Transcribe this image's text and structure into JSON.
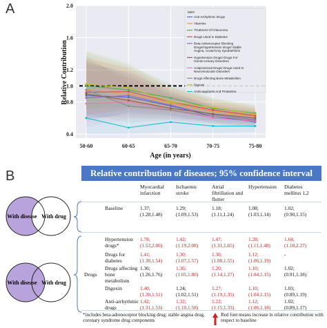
{
  "panel_a_letter": "A",
  "panel_b_letter": "B",
  "chart_data": {
    "type": "line",
    "xlabel": "Age (in years)",
    "ylabel": "Relative Contribution",
    "categories": [
      "50-60",
      "60-65",
      "65-70",
      "70-75",
      "75-80"
    ],
    "ylim": [
      0.35,
      2.0
    ],
    "yticks": [
      0.4,
      0.8,
      1.0,
      1.2,
      1.6,
      2.0
    ],
    "reference_line": 1.0,
    "legend_title": "label",
    "legend_placement": "top-right",
    "series": [
      {
        "name": "Anti-Arrhythmic Drugs",
        "color": "#4a6fc4",
        "values": [
          0.88,
          0.86,
          0.75,
          0.62,
          0.55
        ]
      },
      {
        "name": "Vitamins",
        "color": "#e59a3a",
        "values": [
          0.95,
          0.9,
          0.78,
          0.68,
          0.62
        ]
      },
      {
        "name": "Treatment Of Glaucoma",
        "color": "#4caf50",
        "values": [
          1.0,
          0.95,
          0.85,
          0.72,
          0.66
        ]
      },
      {
        "name": "Drugs Used In Diabetes",
        "color": "#d94b4b",
        "values": [
          0.92,
          0.93,
          0.8,
          0.7,
          0.63
        ]
      },
      {
        "name": "Beta-Adrenoceptor Blocking Drugs/Hypertension drugs/ Stable Angina, Acute/Cnry Syndr&Fibrin",
        "color": "#8e6ac0",
        "values": [
          0.85,
          0.88,
          0.76,
          0.64,
          0.58
        ]
      },
      {
        "name": "Hypertension Drugs/ Drugs For Genito-Urinary Disorders",
        "color": "#8c5a48",
        "values": [
          0.9,
          0.82,
          0.72,
          0.65,
          0.6
        ]
      },
      {
        "name": "Antiprotozoal Drugs/ Drugs Used In Neuromuscular Disorders",
        "color": "#e377c2",
        "values": [
          0.78,
          0.8,
          0.7,
          0.6,
          0.56
        ]
      },
      {
        "name": "Drugs Affecting Bone Metabolism",
        "color": "#8a8a8a",
        "values": [
          0.95,
          0.75,
          0.7,
          0.62,
          0.57
        ]
      },
      {
        "name": "Digoxin",
        "color": "#bcbd22",
        "values": [
          1.02,
          0.98,
          0.8,
          0.73,
          0.65
        ]
      },
      {
        "name": "Anticoagulants And Protamine",
        "color": "#17becf",
        "values": [
          0.6,
          0.48,
          0.55,
          0.5,
          0.5
        ]
      }
    ]
  },
  "table": {
    "title": "Relative contribution of diseases; 95% confidence interval",
    "columns": [
      "Myocardial infarction",
      "Ischaemic stroke",
      "Atrial fibrillation and flutter",
      "Hypertension",
      "Diabetes mellitus 1,2"
    ],
    "baseline": {
      "label": "Baseline",
      "cells": [
        "1.37; (1.28,1.48)",
        "1.29; (1.09,1.53)",
        "1.18; (1.11,1.24)",
        "1.08; (1.03,1.14)",
        "1.02; (0.90,1.15)"
      ]
    },
    "drugs_label": "Drugs",
    "rows": [
      {
        "label": "Hypertension drugs*",
        "cells": [
          {
            "text": "1.78; (1.53,2.06)",
            "red": true
          },
          {
            "text": "1.42; (1.19,2.08)",
            "red": true
          },
          {
            "text": "1.47; (1.31,1.65)",
            "red": true
          },
          {
            "text": "1.28; (1.11,1.48)",
            "red": true
          },
          {
            "text": "1.64; (1.18,2.27)",
            "red": true
          }
        ]
      },
      {
        "label": "Drugs for diabetes",
        "cells": [
          {
            "text": "1.41; (1.30,1.54)",
            "red": true
          },
          {
            "text": "1.30; (1.07,1.57)",
            "red": true
          },
          {
            "text": "1.30; (1.08,1.55)",
            "red": true
          },
          {
            "text": "1.12; (1.06,1.19)",
            "red": true
          },
          {
            "text": "-",
            "red": false
          }
        ]
      },
      {
        "label": "Drugs affecting bone metabolism",
        "cells": [
          {
            "text": "1.36; (1.26,1.76)",
            "red": false
          },
          {
            "text": "1.36; (1.05,1.80)",
            "red": true
          },
          {
            "text": "1.20; (1.14,1.27)",
            "red": true
          },
          {
            "text": "1.10; (1.04,1.15)",
            "red": true
          },
          {
            "text": "1.02; (0.91,1.18)",
            "red": false
          }
        ]
      },
      {
        "label": "Digoxin",
        "cells": [
          {
            "text": "1.40; (1.30,1.51)",
            "red": true
          },
          {
            "text": "1.24; (1.02,1.51)",
            "red": false
          },
          {
            "text": "1.27; (1.19,1.35)",
            "red": true
          },
          {
            "text": "1.10; (1.04,1.15)",
            "red": true
          },
          {
            "text": "1.03; (0.89,1.19)",
            "red": false
          }
        ]
      },
      {
        "label": "Anti-arrhythmic drugs",
        "cells": [
          {
            "text": "1.42; (1.31,1.53)",
            "red": true
          },
          {
            "text": "1.32; (1.10,1.58)",
            "red": true
          },
          {
            "text": "1.22; (1.15,1.33)",
            "red": true
          },
          {
            "text": "1.12; (1.06,1.18)",
            "red": true
          },
          {
            "text": "1.02; (0.89,1.17)",
            "red": false
          }
        ]
      }
    ],
    "footnote": "*includes beta-adrenoceptor blocking drug; stable angina drug, coronary syndrome drug components",
    "red_note": "Red font means increase in relative contribution with respect to baseline"
  },
  "venn_top": {
    "left": "With disease",
    "right": "With drug"
  },
  "venn_bottom": {
    "left": "With disease",
    "right": "With drug"
  },
  "colors": {
    "header_blue": "#4a78c4",
    "red": "#d32020",
    "venn_purple": "#b9a3dc"
  }
}
